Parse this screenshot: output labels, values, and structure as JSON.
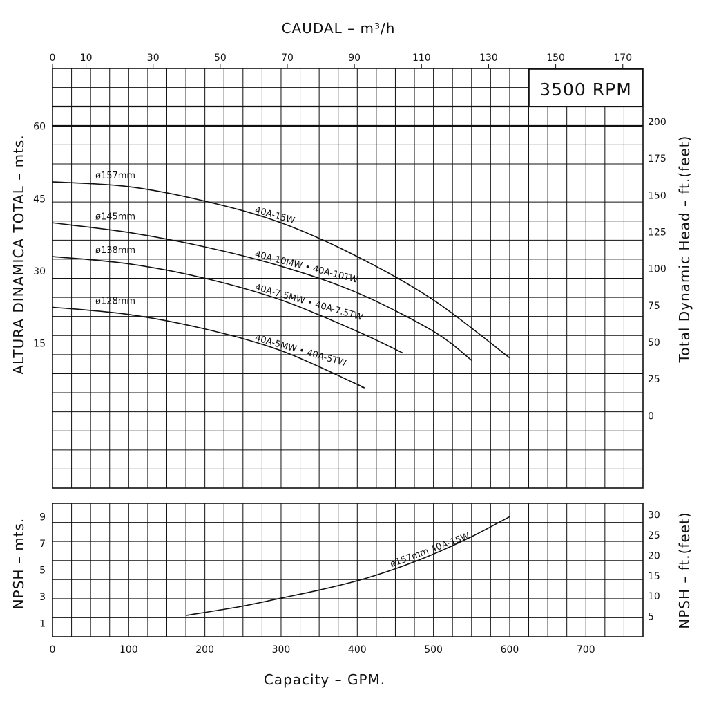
{
  "chart_data": [
    {
      "type": "line",
      "title": "",
      "rpm_label": "3500 RPM",
      "top_axis": {
        "label": "CAUDAL – m³/h",
        "ticks": [
          0,
          10,
          30,
          50,
          70,
          90,
          110,
          130,
          150,
          170
        ]
      },
      "xlabel": "Capacity – GPM.",
      "xlim": [
        0,
        775
      ],
      "x_ticks": [
        0,
        100,
        200,
        300,
        400,
        500,
        600,
        700
      ],
      "ylabel": "ALTURA DINAMICA TOTAL – mts.",
      "ylim": [
        -15,
        72
      ],
      "y_ticks": [
        15,
        30,
        45,
        60
      ],
      "right_axis": {
        "label": "Total Dynamic Head – ft.(feet)",
        "ticks": [
          0,
          25,
          50,
          75,
          100,
          125,
          150,
          175,
          200
        ]
      },
      "grid": true,
      "series": [
        {
          "name": "ø157mm",
          "model_label": "40A-15W",
          "x": [
            0,
            100,
            200,
            300,
            400,
            500,
            600
          ],
          "y": [
            48.5,
            47.5,
            44.5,
            40.0,
            33.0,
            24.0,
            12.0
          ]
        },
        {
          "name": "ø145mm",
          "model_label": "40A-10MW • 40A-10TW",
          "x": [
            0,
            100,
            200,
            300,
            400,
            500,
            550
          ],
          "y": [
            40.0,
            38.0,
            35.0,
            31.0,
            25.5,
            17.5,
            11.5
          ]
        },
        {
          "name": "ø138mm",
          "model_label": "40A-7.5MW • 40A-7.5TW",
          "x": [
            0,
            100,
            200,
            300,
            400,
            460
          ],
          "y": [
            33.0,
            31.5,
            28.5,
            24.0,
            17.5,
            13.0
          ]
        },
        {
          "name": "ø128mm",
          "model_label": "40A-5MW • 40A-5TW",
          "x": [
            0,
            100,
            200,
            300,
            400,
            405
          ],
          "y": [
            22.5,
            21.0,
            18.0,
            13.5,
            6.5,
            6.0
          ]
        }
      ]
    },
    {
      "type": "line",
      "title": "",
      "xlabel": "Capacity – GPM.",
      "xlim": [
        0,
        775
      ],
      "ylabel": "NPSH – mts.",
      "ylim": [
        0,
        10
      ],
      "y_ticks": [
        1,
        3,
        5,
        7,
        9
      ],
      "right_axis": {
        "label": "NPSH – ft.(feet)",
        "ticks": [
          5,
          10,
          15,
          20,
          25,
          30
        ]
      },
      "grid": true,
      "series": [
        {
          "name": "ø157mm 40A-15W",
          "x": [
            175,
            250,
            300,
            350,
            400,
            450,
            500,
            550,
            600
          ],
          "y": [
            1.6,
            2.3,
            2.9,
            3.5,
            4.2,
            5.1,
            6.2,
            7.5,
            9.0
          ]
        }
      ]
    }
  ]
}
